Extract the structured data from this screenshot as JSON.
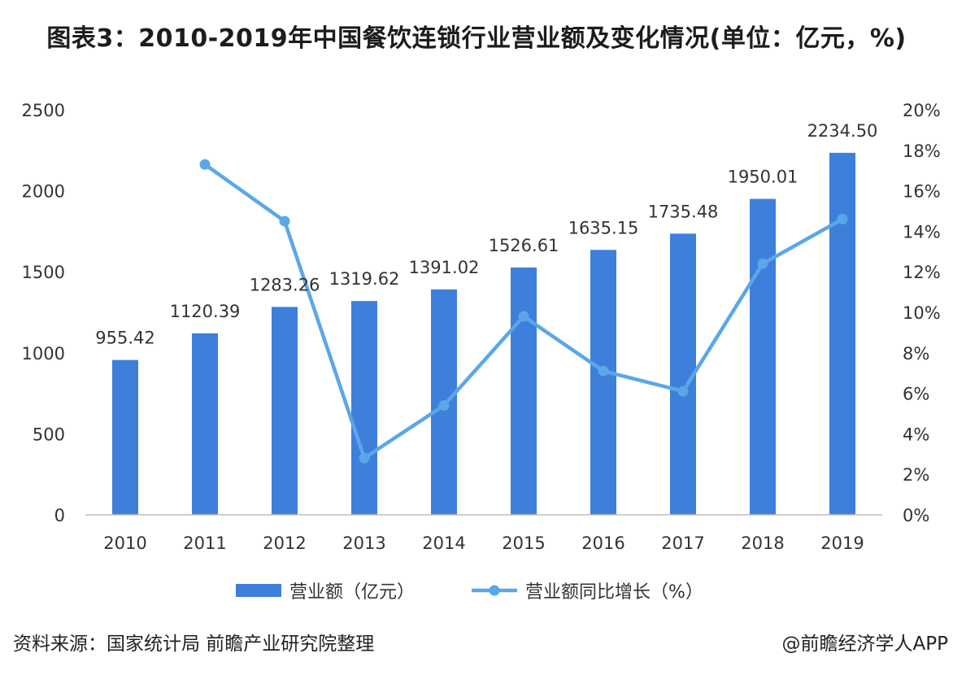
{
  "title": "图表3：2010-2019年中国餐饮连锁行业营业额及变化情况(单位：亿元，%)",
  "footer": {
    "source": "资料来源：国家统计局 前瞻产业研究院整理",
    "credit": "@前瞻经济学人APP"
  },
  "colors": {
    "bar": "#3d7fdb",
    "line": "#5aa7e8",
    "axis": "#bfbfbf",
    "text": "#333333"
  },
  "chart_data": {
    "type": "bar+line",
    "categories": [
      "2010",
      "2011",
      "2012",
      "2013",
      "2014",
      "2015",
      "2016",
      "2017",
      "2018",
      "2019"
    ],
    "series": [
      {
        "name": "营业额（亿元）",
        "type": "bar",
        "axis": "left",
        "values": [
          955.42,
          1120.39,
          1283.26,
          1319.62,
          1391.02,
          1526.61,
          1635.15,
          1735.48,
          1950.01,
          2234.5
        ],
        "labels": [
          "955.42",
          "1120.39",
          "1283.26",
          "1319.62",
          "1391.02",
          "1526.61",
          "1635.15",
          "1735.48",
          "1950.01",
          "2234.50"
        ]
      },
      {
        "name": "营业额同比增长（%）",
        "type": "line",
        "axis": "right",
        "values": [
          null,
          17.3,
          14.5,
          2.8,
          5.4,
          9.8,
          7.1,
          6.1,
          12.4,
          14.6
        ]
      }
    ],
    "left_axis": {
      "ylim": [
        0,
        2500
      ],
      "ticks": [
        0,
        500,
        1000,
        1500,
        2000,
        2500
      ],
      "tick_labels": [
        "0",
        "500",
        "1000",
        "1500",
        "2000",
        "2500"
      ]
    },
    "right_axis": {
      "ylim": [
        0,
        20
      ],
      "ticks": [
        0,
        2,
        4,
        6,
        8,
        10,
        12,
        14,
        16,
        18,
        20
      ],
      "tick_labels": [
        "0%",
        "2%",
        "4%",
        "6%",
        "8%",
        "10%",
        "12%",
        "14%",
        "16%",
        "18%",
        "20%"
      ]
    },
    "legend_position": "bottom-center"
  }
}
